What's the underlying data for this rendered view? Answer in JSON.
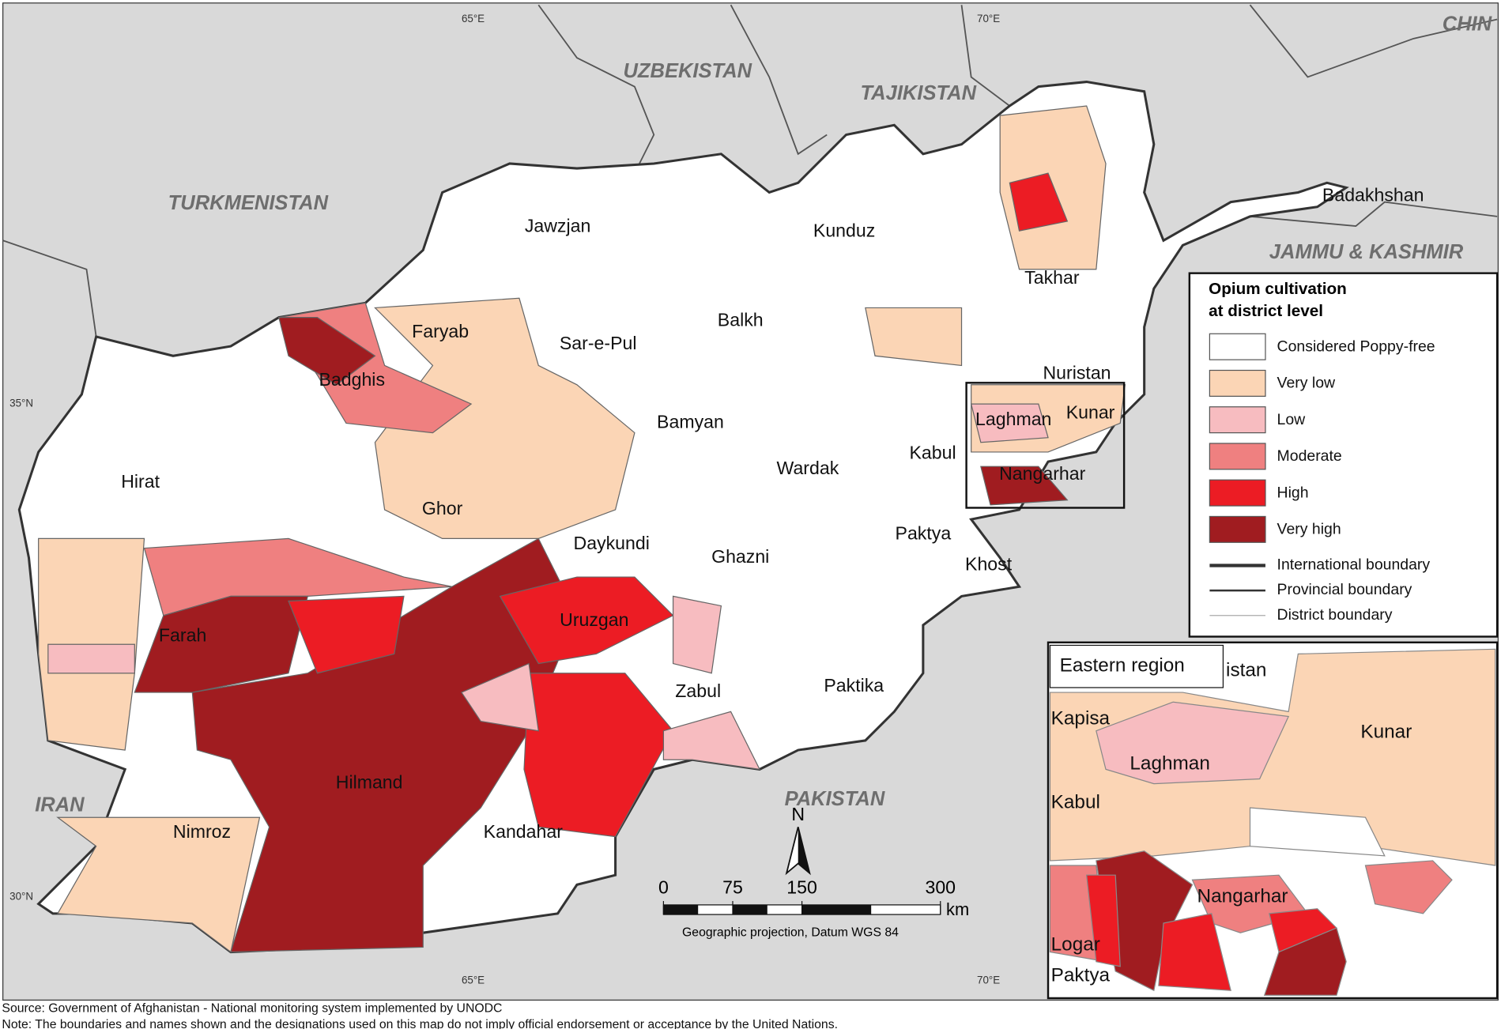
{
  "map": {
    "countries": [
      "UZBEKISTAN",
      "TAJIKISTAN",
      "TURKMENISTAN",
      "IRAN",
      "PAKISTAN",
      "CHIN",
      "JAMMU & KASHMIR"
    ],
    "provinces": [
      "Jawzjan",
      "Kunduz",
      "Takhar",
      "Badakhshan",
      "Faryab",
      "Sar-e-Pul",
      "Balkh",
      "Badghis",
      "Hirat",
      "Bamyan",
      "Ghor",
      "Daykundi",
      "Wardak",
      "Kabul",
      "Laghman",
      "Kunar",
      "Nuristan",
      "Nangarhar",
      "Paktya",
      "Khost",
      "Ghazni",
      "Uruzgan",
      "Zabul",
      "Paktika",
      "Farah",
      "Hilmand",
      "Kandahar",
      "Nimroz"
    ],
    "graticule": {
      "lon": [
        "65°E",
        "70°E"
      ],
      "lat": [
        "35°N",
        "30°N"
      ]
    },
    "legend": {
      "title": [
        "Opium cultivation",
        "at district level"
      ],
      "classes": [
        {
          "label": "Considered Poppy-free",
          "color": "#ffffff"
        },
        {
          "label": "Very low",
          "color": "#fbd5b5"
        },
        {
          "label": "Low",
          "color": "#f7bcc0"
        },
        {
          "label": "Moderate",
          "color": "#ef8080"
        },
        {
          "label": "High",
          "color": "#ec1c24"
        },
        {
          "label": "Very high",
          "color": "#a01c20"
        }
      ],
      "boundaries": [
        "International boundary",
        "Provincial boundary",
        "District boundary"
      ]
    },
    "scale": {
      "ticks": [
        0,
        75,
        150,
        300
      ],
      "unit": "km",
      "north": "N",
      "projection": "Geographic projection, Datum WGS 84"
    },
    "inset": {
      "title": "Eastern region",
      "labels": [
        "istan",
        "Kapisa",
        "Laghman",
        "Kunar",
        "Kabul",
        "Nangarhar",
        "Logar",
        "Paktya"
      ]
    },
    "notes": [
      "Source: Government of Afghanistan - National monitoring system implemented by UNODC",
      "Note: The boundaries and names shown and the designations used on this map do not imply official endorsement or acceptance by the United Nations."
    ]
  }
}
